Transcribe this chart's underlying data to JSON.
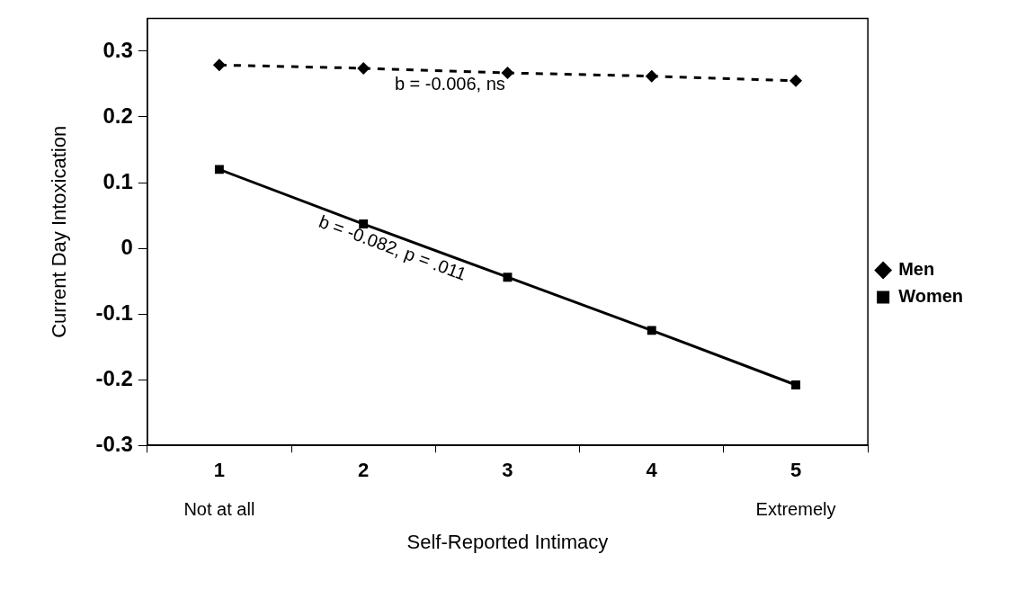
{
  "chart_data": {
    "type": "line",
    "xlabel": "Self-Reported Intimacy",
    "ylabel": "Current Day Intoxication",
    "categories": [
      "1",
      "2",
      "3",
      "4",
      "5"
    ],
    "series": [
      {
        "name": "Men",
        "color": "#000000",
        "marker": "diamond",
        "line_style": "dashed",
        "values": [
          0.279,
          0.274,
          0.267,
          0.262,
          0.255
        ]
      },
      {
        "name": "Women",
        "color": "#000000",
        "marker": "square",
        "line_style": "solid",
        "values": [
          0.12,
          0.037,
          -0.044,
          -0.125,
          -0.208
        ]
      }
    ],
    "ylim": [
      -0.3,
      0.35
    ],
    "yticks": [
      -0.3,
      -0.2,
      -0.1,
      0,
      0.1,
      0.2,
      0.3
    ],
    "grid": false,
    "legend": "right",
    "annotations": [
      "b = -0.006, ns",
      "b = -0.082, p = .011",
      "Not at all",
      "Extremely"
    ]
  }
}
